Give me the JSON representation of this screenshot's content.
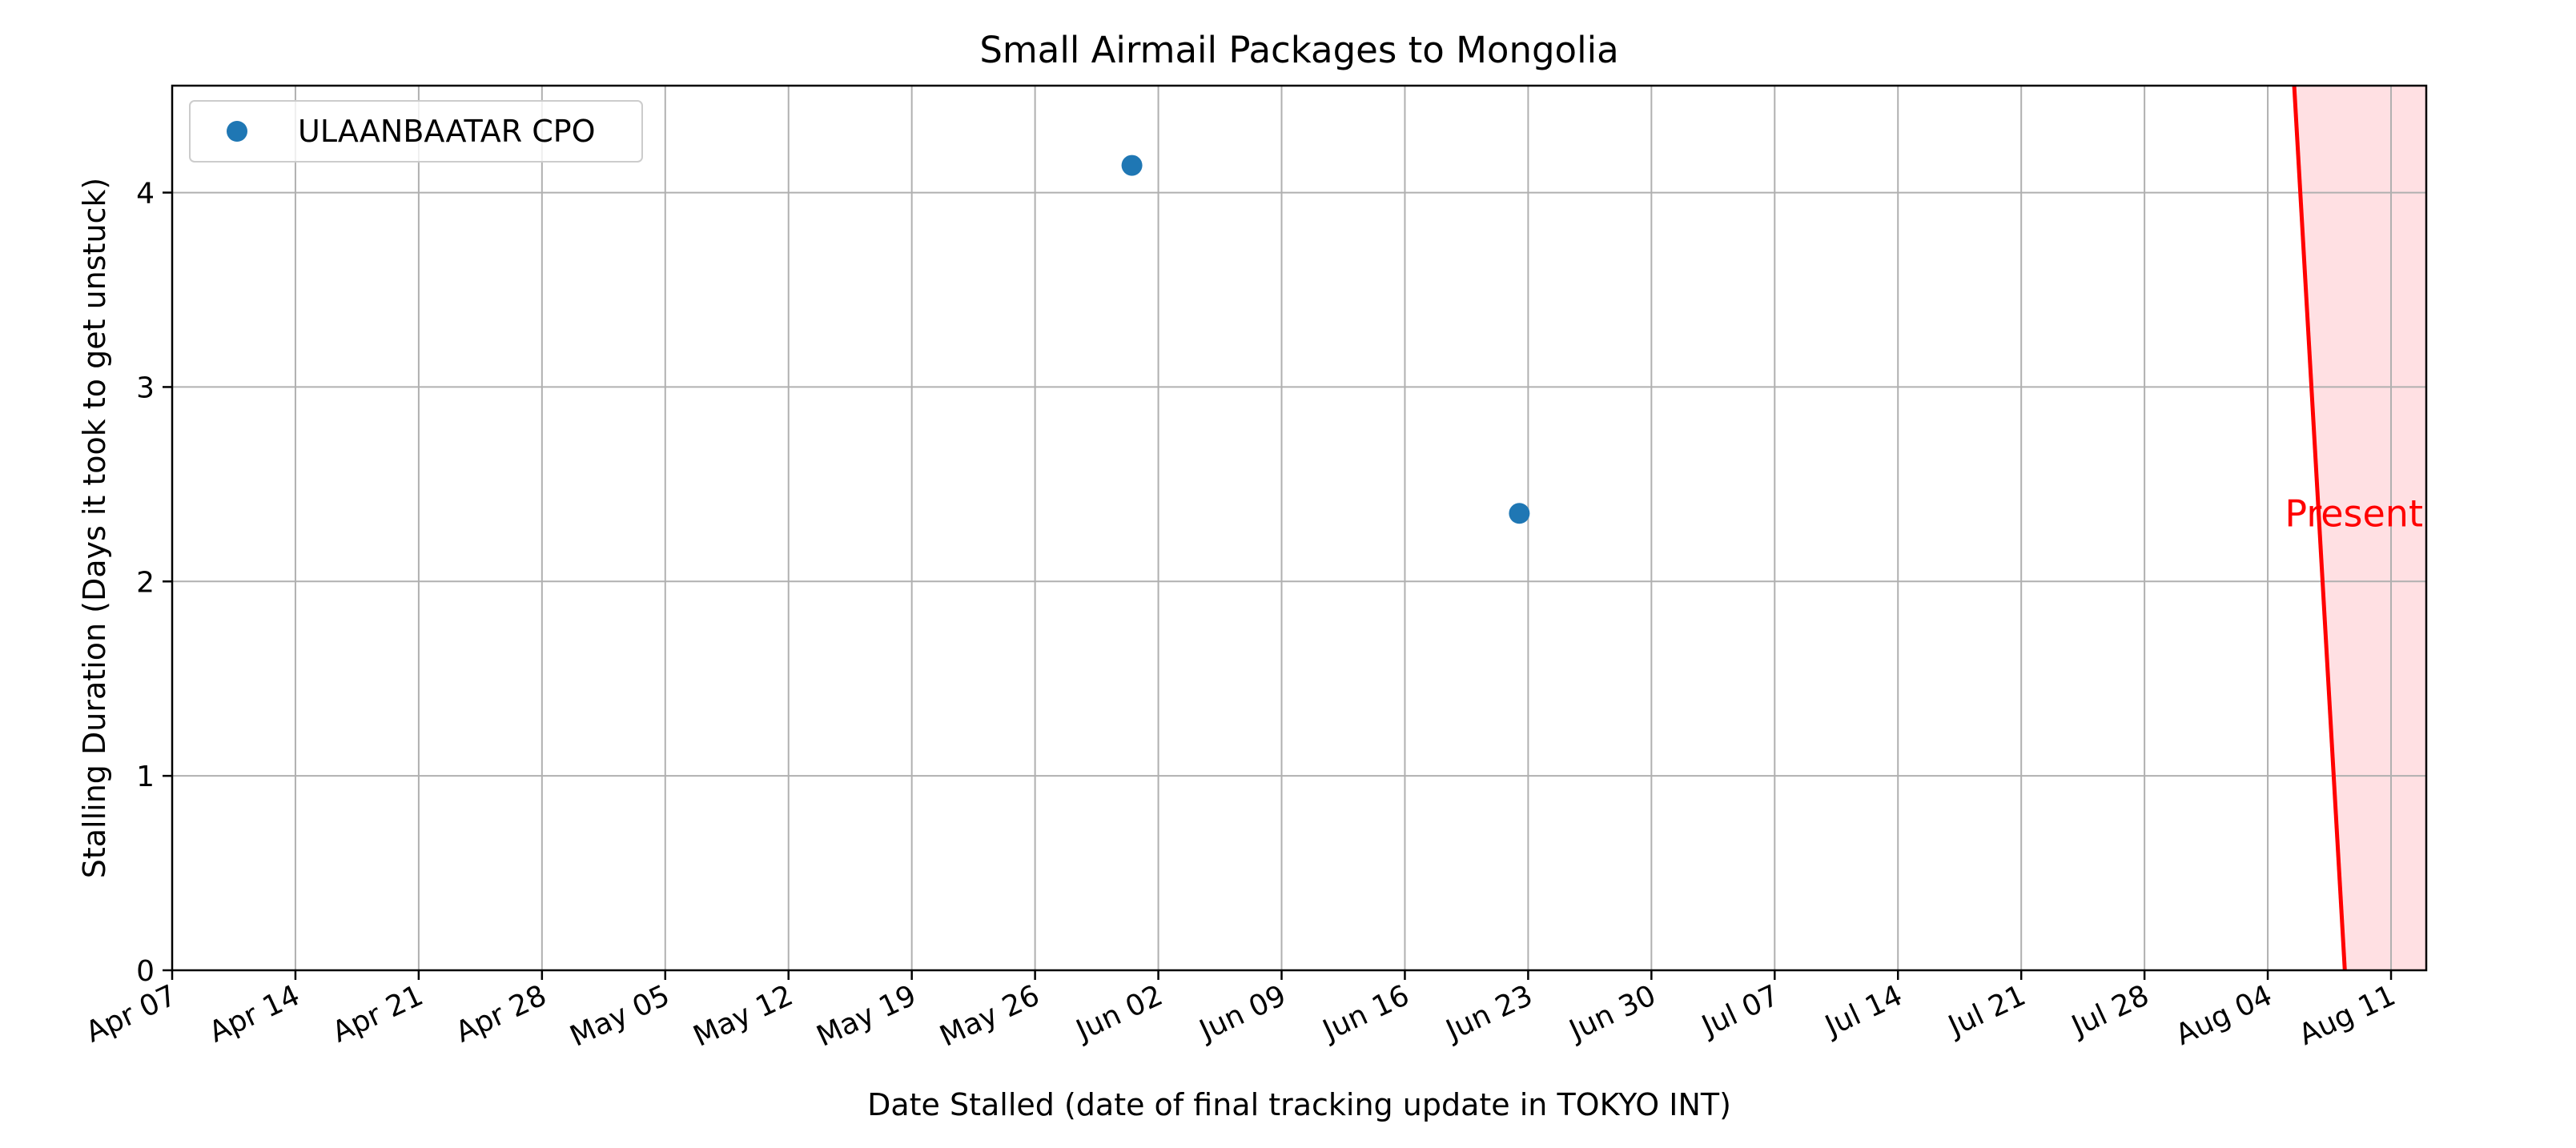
{
  "chart_data": {
    "type": "scatter",
    "title": "Small Airmail Packages to Mongolia",
    "xlabel": "Date Stalled (date of final tracking update in TOKYO INT)",
    "ylabel": "Stalling Duration (Days it took to get unstuck)",
    "x_axis_type": "date",
    "xlim": [
      "2024-04-07",
      "2024-08-13"
    ],
    "ylim": [
      0,
      4.55
    ],
    "x_ticks": [
      {
        "date": "2024-04-07",
        "label": "Apr 07"
      },
      {
        "date": "2024-04-14",
        "label": "Apr 14"
      },
      {
        "date": "2024-04-21",
        "label": "Apr 21"
      },
      {
        "date": "2024-04-28",
        "label": "Apr 28"
      },
      {
        "date": "2024-05-05",
        "label": "May 05"
      },
      {
        "date": "2024-05-12",
        "label": "May 12"
      },
      {
        "date": "2024-05-19",
        "label": "May 19"
      },
      {
        "date": "2024-05-26",
        "label": "May 26"
      },
      {
        "date": "2024-06-02",
        "label": "Jun 02"
      },
      {
        "date": "2024-06-09",
        "label": "Jun 09"
      },
      {
        "date": "2024-06-16",
        "label": "Jun 16"
      },
      {
        "date": "2024-06-23",
        "label": "Jun 23"
      },
      {
        "date": "2024-06-30",
        "label": "Jun 30"
      },
      {
        "date": "2024-07-07",
        "label": "Jul 07"
      },
      {
        "date": "2024-07-14",
        "label": "Jul 14"
      },
      {
        "date": "2024-07-21",
        "label": "Jul 21"
      },
      {
        "date": "2024-07-28",
        "label": "Jul 28"
      },
      {
        "date": "2024-08-04",
        "label": "Aug 04"
      },
      {
        "date": "2024-08-11",
        "label": "Aug 11"
      }
    ],
    "y_ticks": [
      {
        "value": 0,
        "label": "0"
      },
      {
        "value": 1,
        "label": "1"
      },
      {
        "value": 2,
        "label": "2"
      },
      {
        "value": 3,
        "label": "3"
      },
      {
        "value": 4,
        "label": "4"
      }
    ],
    "grid": true,
    "legend": {
      "position": "top-left",
      "entries": [
        {
          "label": "ULAANBAATAR CPO",
          "marker": "circle",
          "color": "#1f77b4"
        }
      ]
    },
    "series": [
      {
        "name": "ULAANBAATAR CPO",
        "color": "#1f77b4",
        "points": [
          {
            "x": "2024-05-31T12:00",
            "y": 4.14
          },
          {
            "x": "2024-06-22T12:00",
            "y": 2.35
          }
        ]
      }
    ],
    "present_marker": {
      "label": "Present",
      "color": "#ff0000",
      "shade_color": "#ffe0e3",
      "line_top": {
        "x": "2024-08-05T12:00",
        "y": 4.55
      },
      "line_bottom": {
        "x": "2024-08-08T09:00",
        "y": 0
      }
    }
  }
}
